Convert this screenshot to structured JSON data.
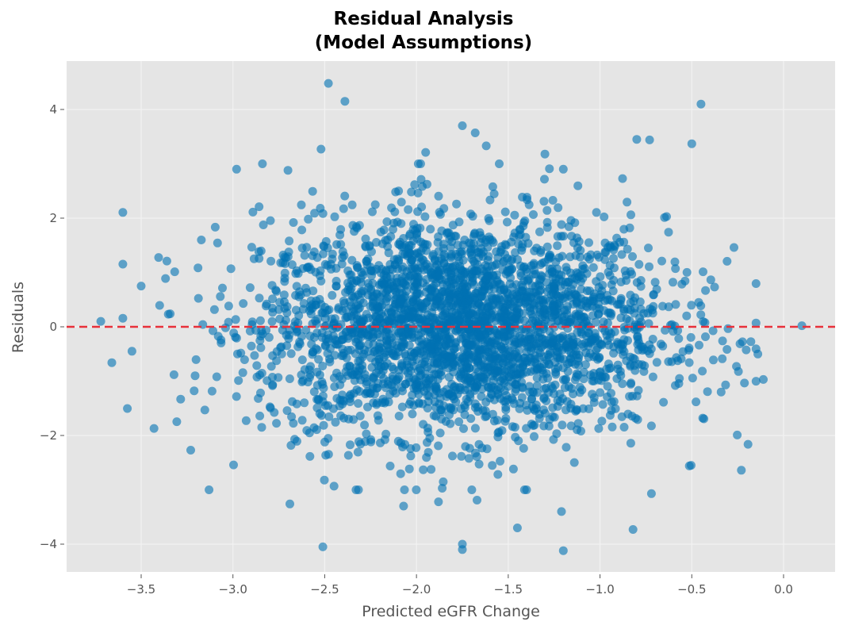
{
  "chart_data": {
    "type": "scatter",
    "title": "Residual Analysis\n(Model Assumptions)",
    "title_lines": [
      "Residual Analysis",
      "(Model Assumptions)"
    ],
    "xlabel": "Predicted eGFR Change",
    "ylabel": "Residuals",
    "xlim": [
      -3.88,
      0.27
    ],
    "ylim": [
      -4.45,
      4.95
    ],
    "xticks": [
      -3.5,
      -3.0,
      -2.5,
      -2.0,
      -1.5,
      -1.0,
      -0.5,
      0.0
    ],
    "xtick_labels": [
      "−3.5",
      "−3.0",
      "−2.5",
      "−2.0",
      "−1.5",
      "−1.0",
      "−0.5",
      "0.0"
    ],
    "yticks": [
      -4,
      -2,
      0,
      2,
      4
    ],
    "ytick_labels": [
      "−4",
      "−2",
      "0",
      "2",
      "4"
    ],
    "grid": true,
    "legend": null,
    "reference_line": {
      "y": 0,
      "style": "dashed",
      "color": "#e8303a"
    },
    "point_color": "#0072B2",
    "point_alpha": 0.6,
    "approx_n_points": 3000,
    "dense_core": {
      "x_mean": -1.75,
      "x_sd": 0.55,
      "y_mean": 0.0,
      "y_sd": 1.0,
      "note": "bulk of points roughly normal, centered near x=-1.75, y=0"
    },
    "notable_points": [
      {
        "x": -2.48,
        "y": 4.48
      },
      {
        "x": -2.39,
        "y": 4.15
      },
      {
        "x": -0.45,
        "y": 4.1
      },
      {
        "x": -1.75,
        "y": 3.7
      },
      {
        "x": -1.68,
        "y": 3.57
      },
      {
        "x": -0.8,
        "y": 3.45
      },
      {
        "x": -0.73,
        "y": 3.44
      },
      {
        "x": -0.5,
        "y": 3.37
      },
      {
        "x": -2.52,
        "y": 3.27
      },
      {
        "x": -1.62,
        "y": 3.33
      },
      {
        "x": -1.95,
        "y": 3.21
      },
      {
        "x": -1.3,
        "y": 3.18
      },
      {
        "x": -2.98,
        "y": 2.9
      },
      {
        "x": -2.7,
        "y": 2.88
      },
      {
        "x": -1.2,
        "y": 2.9
      },
      {
        "x": -0.27,
        "y": 1.46
      },
      {
        "x": -3.36,
        "y": 1.21
      },
      {
        "x": -3.5,
        "y": 0.75
      },
      {
        "x": -3.72,
        "y": 0.1
      },
      {
        "x": -3.55,
        "y": -0.45
      },
      {
        "x": -3.66,
        "y": -0.66
      },
      {
        "x": 0.1,
        "y": 0.02
      },
      {
        "x": -0.15,
        "y": 0.07
      },
      {
        "x": -0.14,
        "y": -0.5
      },
      {
        "x": -0.11,
        "y": -0.97
      },
      {
        "x": -3.43,
        "y": -1.87
      },
      {
        "x": -3.23,
        "y": -2.27
      },
      {
        "x": -3.13,
        "y": -3.0
      },
      {
        "x": -2.69,
        "y": -3.26
      },
      {
        "x": -2.51,
        "y": -4.05
      },
      {
        "x": -2.07,
        "y": -3.3
      },
      {
        "x": -1.88,
        "y": -3.22
      },
      {
        "x": -1.67,
        "y": -3.19
      },
      {
        "x": -1.75,
        "y": -4.0
      },
      {
        "x": -1.75,
        "y": -4.1
      },
      {
        "x": -1.2,
        "y": -4.12
      },
      {
        "x": -1.21,
        "y": -3.4
      },
      {
        "x": -1.45,
        "y": -3.7
      },
      {
        "x": -0.82,
        "y": -3.73
      },
      {
        "x": -0.72,
        "y": -3.07
      },
      {
        "x": -0.23,
        "y": -2.64
      },
      {
        "x": -0.34,
        "y": -1.2
      }
    ]
  }
}
